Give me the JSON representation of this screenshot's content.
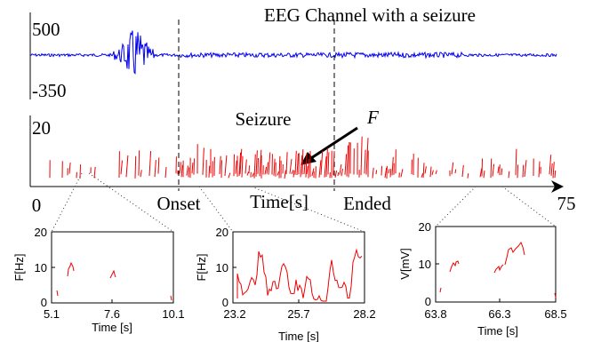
{
  "top_panel": {
    "title": "EEG Channel with a seizure",
    "y_max_label": "500",
    "y_min_label": "-350",
    "color": "#0000ee"
  },
  "mid_panel": {
    "y_max_label": "20",
    "x_start_label": "0",
    "x_end_label": "75",
    "xlabel": "Time[s]",
    "seizure_label": "Seizure",
    "f_label": "F",
    "onset_label": "Onset",
    "ended_label": "Ended",
    "color": "#ee0000"
  },
  "chart_data": [
    {
      "type": "line",
      "title": "EEG Channel with a seizure",
      "ylim": [
        -350,
        500
      ],
      "series": [
        {
          "description": "EEG amplitude trace",
          "color": "#0000ee"
        }
      ]
    },
    {
      "type": "scatter",
      "xlim": [
        0,
        75
      ],
      "ylim": [
        0,
        20
      ],
      "xlabel": "Time[s]",
      "annotations": [
        "Seizure",
        "F",
        "Onset",
        "Ended"
      ]
    },
    {
      "type": "line",
      "xlabel": "Time [s]",
      "ylabel": "F[Hz]",
      "xticks": [
        "5.1",
        "7.6",
        "10.1"
      ],
      "yticks": [
        "0",
        "10",
        "20"
      ],
      "xlim": [
        5.1,
        10.1
      ],
      "ylim": [
        0,
        20
      ]
    },
    {
      "type": "line",
      "xlabel": "Time [s]",
      "ylabel": "F[Hz]",
      "xticks": [
        "23.2",
        "25.7",
        "28.2"
      ],
      "yticks": [
        "0",
        "10",
        "20"
      ],
      "xlim": [
        23.2,
        28.2
      ],
      "ylim": [
        0,
        20
      ]
    },
    {
      "type": "line",
      "xlabel": "Time [s]",
      "ylabel": "V[mV]",
      "xticks": [
        "63.8",
        "66.3",
        "68.5"
      ],
      "yticks": [
        "0",
        "10",
        "20"
      ],
      "xlim": [
        63.8,
        68.5
      ],
      "ylim": [
        0,
        20
      ]
    }
  ]
}
